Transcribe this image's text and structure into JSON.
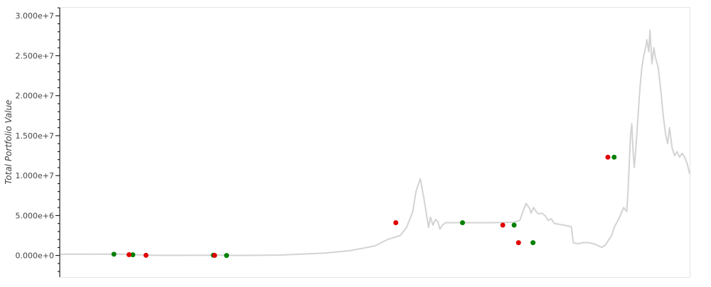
{
  "chart_data": {
    "type": "line",
    "title": "",
    "xlabel": "",
    "ylabel": "Total Portfolio Value",
    "ylim": [
      -2700000,
      31000000
    ],
    "xlim": [
      0,
      1000
    ],
    "grid": false,
    "legend": "none",
    "yticks": [
      {
        "value": 0,
        "label": "0.000e+0"
      },
      {
        "value": 5000000,
        "label": "5.000e+6"
      },
      {
        "value": 10000000,
        "label": "1.000e+7"
      },
      {
        "value": 15000000,
        "label": "1.500e+7"
      },
      {
        "value": 20000000,
        "label": "2.000e+7"
      },
      {
        "value": 25000000,
        "label": "2.500e+7"
      },
      {
        "value": 30000000,
        "label": "3.000e+7"
      }
    ],
    "colors": {
      "line": "#d3d3d3",
      "buy": "#008000",
      "sell": "#e00000",
      "border": "#e5e5e5",
      "axis": "#000000"
    },
    "series": [
      {
        "x": [
          0,
          50,
          95,
          110,
          125,
          150,
          250,
          275,
          310,
          345,
          380,
          420,
          460,
          500,
          520,
          540,
          550,
          560,
          565,
          572,
          578,
          582,
          585,
          588,
          592,
          596,
          600,
          603,
          607,
          612,
          620,
          680,
          720,
          730,
          735,
          740,
          745,
          748,
          752,
          756,
          760,
          765,
          770,
          775,
          780,
          785,
          800,
          812,
          815,
          820,
          825,
          830,
          840,
          850,
          855,
          860,
          866,
          870,
          876,
          880,
          888,
          895,
          900,
          902,
          904,
          906,
          908,
          910,
          912,
          915,
          918,
          921,
          924,
          927,
          930,
          932,
          935,
          937,
          940,
          943,
          945,
          950,
          955,
          958,
          962,
          965,
          968,
          972,
          976,
          980,
          984,
          988,
          992,
          996,
          1000
        ],
        "y": [
          150000,
          170000,
          180000,
          100000,
          80000,
          20000,
          30000,
          10000,
          20000,
          50000,
          150000,
          300000,
          600000,
          1200000,
          2000000,
          2500000,
          3500000,
          5500000,
          8000000,
          9600000,
          7000000,
          5000000,
          3500000,
          4800000,
          3800000,
          4500000,
          4200000,
          3300000,
          3800000,
          4100000,
          4100000,
          4100000,
          4150000,
          4400000,
          5500000,
          6500000,
          6000000,
          5300000,
          6000000,
          5500000,
          5200000,
          5300000,
          5000000,
          4400000,
          4600000,
          4000000,
          3800000,
          3600000,
          1600000,
          1500000,
          1500000,
          1600000,
          1600000,
          1400000,
          1200000,
          1000000,
          1300000,
          1800000,
          2500000,
          3500000,
          4700000,
          6000000,
          5500000,
          8000000,
          11500000,
          15000000,
          16500000,
          13000000,
          11000000,
          14000000,
          17500000,
          21000000,
          23500000,
          25000000,
          26000000,
          27000000,
          25500000,
          28200000,
          24000000,
          26000000,
          25000000,
          23500000,
          20000000,
          17500000,
          15000000,
          14000000,
          16000000,
          13500000,
          12500000,
          13000000,
          12300000,
          12800000,
          12300000,
          11500000,
          10200000
        ]
      }
    ],
    "buy_points": [
      {
        "x": 85,
        "y": 160000
      },
      {
        "x": 115,
        "y": 90000
      },
      {
        "x": 243,
        "y": 30000
      },
      {
        "x": 264,
        "y": 0
      },
      {
        "x": 639,
        "y": 4100000
      },
      {
        "x": 721,
        "y": 3800000
      },
      {
        "x": 751,
        "y": 1600000
      },
      {
        "x": 880,
        "y": 12300000
      }
    ],
    "sell_points": [
      {
        "x": 109,
        "y": 100000
      },
      {
        "x": 136,
        "y": 20000
      },
      {
        "x": 245,
        "y": 10000
      },
      {
        "x": 533,
        "y": 4100000
      },
      {
        "x": 703,
        "y": 3800000
      },
      {
        "x": 728,
        "y": 1600000
      },
      {
        "x": 870,
        "y": 12300000
      }
    ]
  }
}
